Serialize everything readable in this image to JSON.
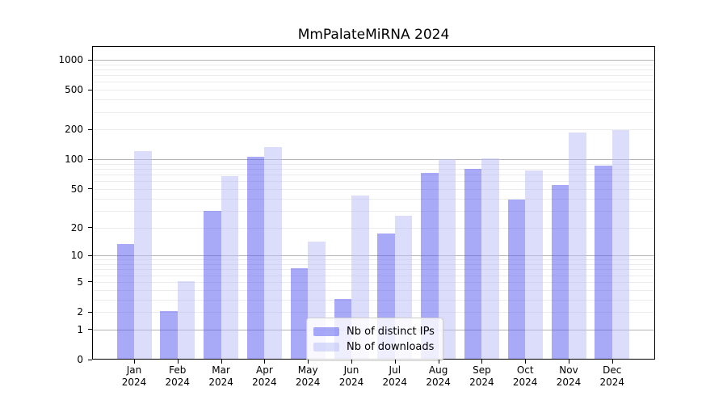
{
  "chart_data": {
    "type": "bar",
    "title": "MmPalateMiRNA 2024",
    "categories": [
      "Jan",
      "Feb",
      "Mar",
      "Apr",
      "May",
      "Jun",
      "Jul",
      "Aug",
      "Sep",
      "Oct",
      "Nov",
      "Dec"
    ],
    "year_label": "2024",
    "series": [
      {
        "name": "Nb of distinct IPs",
        "color": "rgba(82,86,242,0.5)",
        "values": [
          13,
          2,
          29,
          105,
          7,
          3,
          17,
          72,
          79,
          38,
          54,
          85
        ]
      },
      {
        "name": "Nb of downloads",
        "color": "rgba(184,188,247,0.5)",
        "values": [
          119,
          5,
          66,
          130,
          14,
          42,
          26,
          98,
          100,
          75,
          183,
          193
        ]
      }
    ],
    "yscale": "log1p",
    "ylim": [
      0,
      1000
    ],
    "yticks": [
      0,
      1,
      2,
      5,
      10,
      20,
      50,
      100,
      200,
      500,
      1000
    ],
    "major_gridlines": [
      1,
      10,
      100,
      1000
    ],
    "minor_gridlines": [
      2,
      3,
      4,
      5,
      6,
      7,
      8,
      9,
      20,
      30,
      40,
      50,
      60,
      70,
      80,
      90,
      200,
      300,
      400,
      500,
      600,
      700,
      800,
      900
    ],
    "grid": true,
    "legend_position": "bottom-center",
    "colors": {
      "major_grid": "#b3b3b3",
      "minor_grid": "#ebebeb",
      "axis": "#000000",
      "background": "#ffffff"
    }
  }
}
